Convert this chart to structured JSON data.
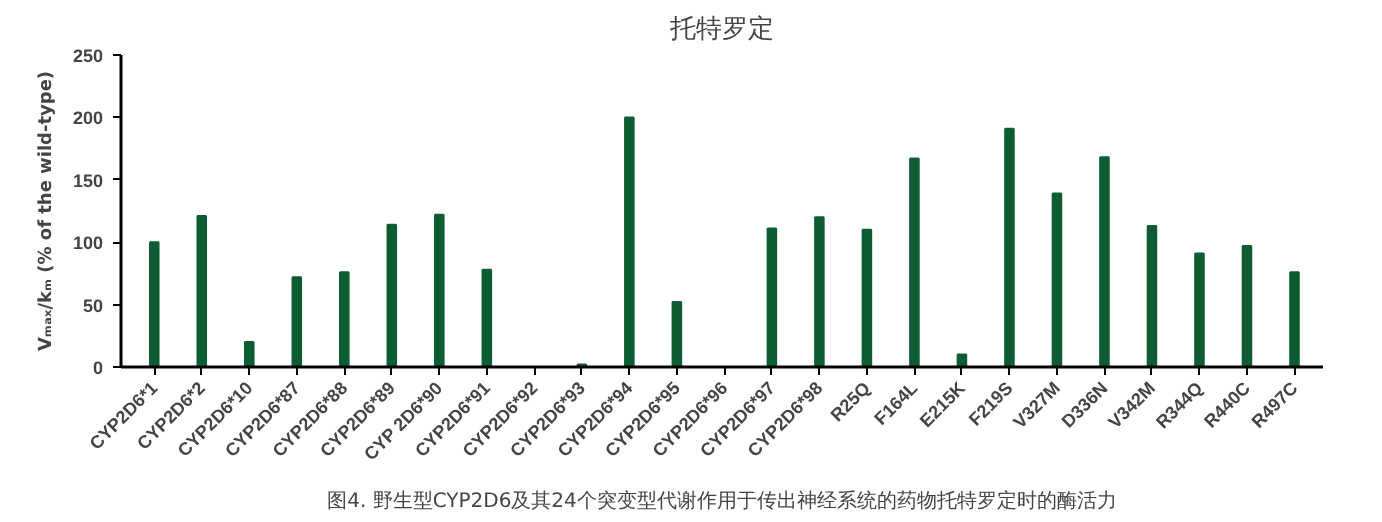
{
  "chart_data": {
    "type": "bar",
    "title": "托特罗定",
    "ylabel": "Vₘₐₓ/kₘ (% of the wild-type)",
    "categories": [
      "CYP2D6*1",
      "CYP2D6*2",
      "CYP2D6*10",
      "CYP2D6*87",
      "CYP2D6*88",
      "CYP2D6*89",
      "CYP 2D6*90",
      "CYP2D6*91",
      "CYP2D6*92",
      "CYP2D6*93",
      "CYP2D6*94",
      "CYP2D6*95",
      "CYP2D6*96",
      "CYP2D6*97",
      "CYP2D6*98",
      "R25Q",
      "F164L",
      "E215K",
      "F219S",
      "V327M",
      "D336N",
      "V342M",
      "R344Q",
      "R440C",
      "R497C"
    ],
    "values": [
      100,
      121,
      20,
      72,
      76,
      114,
      122,
      78,
      0,
      2,
      200,
      52,
      0,
      111,
      120,
      110,
      167,
      10,
      191,
      139,
      168,
      113,
      91,
      97,
      76
    ],
    "color": "#0d5c32",
    "ylim": [
      0,
      250
    ],
    "yticks": [
      0,
      50,
      100,
      150,
      200,
      250
    ],
    "grid": false,
    "annotations": [
      "图4. 野生型CYP2D6及其24个突变型代谢作用于传出神经系统的药物托特罗定时的酶活力"
    ]
  }
}
